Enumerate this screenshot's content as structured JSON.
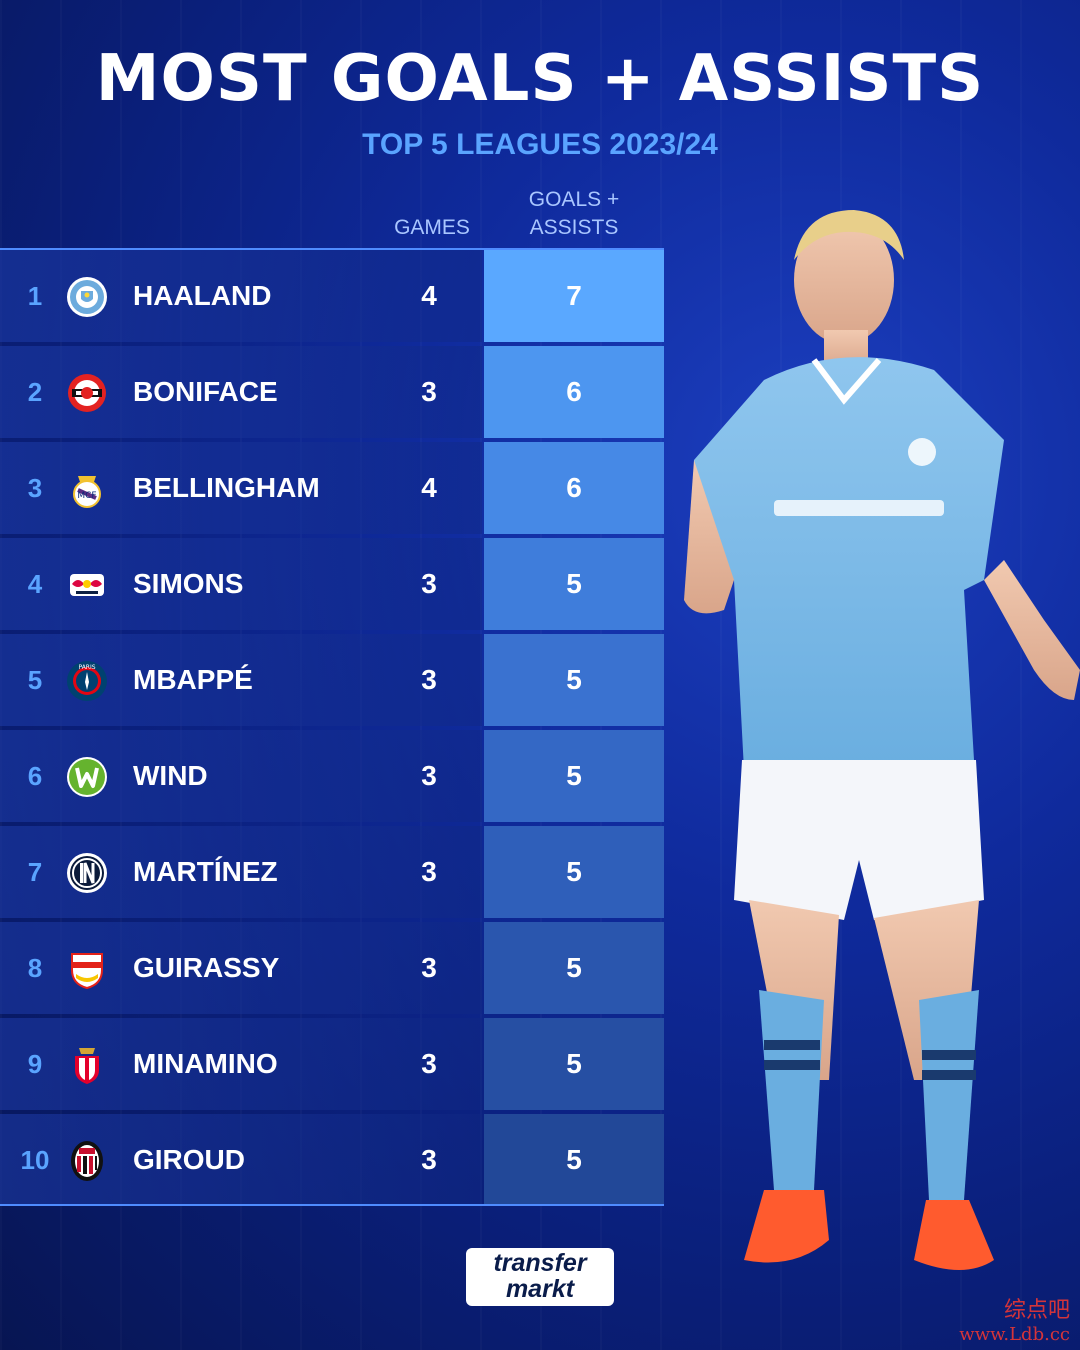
{
  "title": "MOST GOALS + ASSISTS",
  "subtitle": "TOP 5 LEAGUES 2023/24",
  "columns": {
    "games": "GAMES",
    "goals_assists_line1": "GOALS +",
    "goals_assists_line2": "ASSISTS"
  },
  "rows": [
    {
      "rank": "1",
      "name": "HAALAND",
      "games": "4",
      "ga": "7",
      "crest": "manchester-city-crest-icon"
    },
    {
      "rank": "2",
      "name": "BONIFACE",
      "games": "3",
      "ga": "6",
      "crest": "leverkusen-crest-icon"
    },
    {
      "rank": "3",
      "name": "BELLINGHAM",
      "games": "4",
      "ga": "6",
      "crest": "real-madrid-crest-icon"
    },
    {
      "rank": "4",
      "name": "SIMONS",
      "games": "3",
      "ga": "5",
      "crest": "rb-leipzig-crest-icon"
    },
    {
      "rank": "5",
      "name": "MBAPPÉ",
      "games": "3",
      "ga": "5",
      "crest": "psg-crest-icon"
    },
    {
      "rank": "6",
      "name": "WIND",
      "games": "3",
      "ga": "5",
      "crest": "wolfsburg-crest-icon"
    },
    {
      "rank": "7",
      "name": "MARTÍNEZ",
      "games": "3",
      "ga": "5",
      "crest": "inter-crest-icon"
    },
    {
      "rank": "8",
      "name": "GUIRASSY",
      "games": "3",
      "ga": "5",
      "crest": "stuttgart-crest-icon"
    },
    {
      "rank": "9",
      "name": "MINAMINO",
      "games": "3",
      "ga": "5",
      "crest": "monaco-crest-icon"
    },
    {
      "rank": "10",
      "name": "GIROUD",
      "games": "3",
      "ga": "5",
      "crest": "ac-milan-crest-icon"
    }
  ],
  "colors": {
    "accent": "#5aa4ff",
    "ga_cells": [
      "#5aa8ff",
      "#4d96f0",
      "#4689e6",
      "#3f7ddb",
      "#3a72d0",
      "#3468c5",
      "#2f5fba",
      "#2a56ae",
      "#264fa3",
      "#224898"
    ]
  },
  "logo": {
    "line1": "transfer",
    "line2": "markt"
  },
  "watermark": {
    "line1": "综点吧",
    "line2": "www.Ldb.cc"
  }
}
